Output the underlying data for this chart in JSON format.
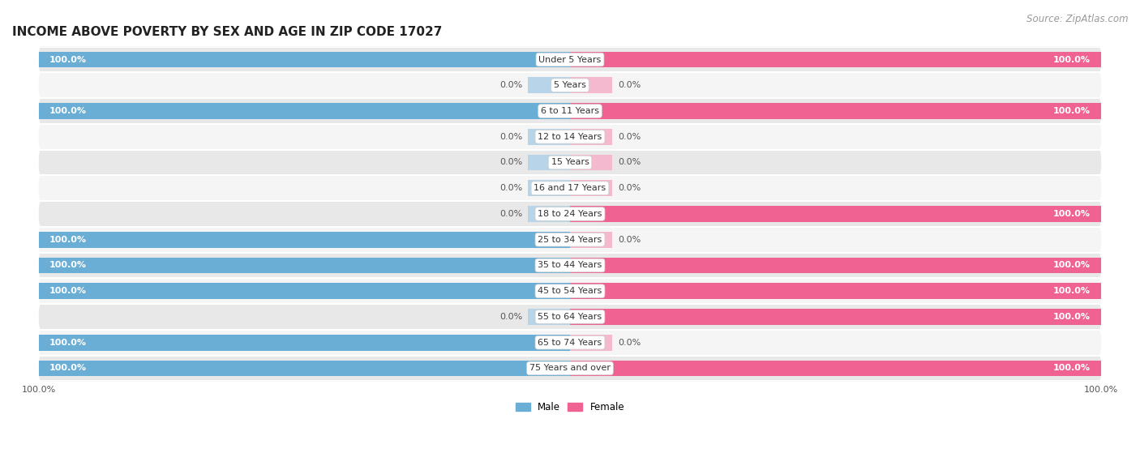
{
  "title": "INCOME ABOVE POVERTY BY SEX AND AGE IN ZIP CODE 17027",
  "source": "Source: ZipAtlas.com",
  "categories": [
    "Under 5 Years",
    "5 Years",
    "6 to 11 Years",
    "12 to 14 Years",
    "15 Years",
    "16 and 17 Years",
    "18 to 24 Years",
    "25 to 34 Years",
    "35 to 44 Years",
    "45 to 54 Years",
    "55 to 64 Years",
    "65 to 74 Years",
    "75 Years and over"
  ],
  "male": [
    100.0,
    0.0,
    100.0,
    0.0,
    0.0,
    0.0,
    0.0,
    100.0,
    100.0,
    100.0,
    0.0,
    100.0,
    100.0
  ],
  "female": [
    100.0,
    0.0,
    100.0,
    0.0,
    0.0,
    0.0,
    100.0,
    0.0,
    100.0,
    100.0,
    100.0,
    0.0,
    100.0
  ],
  "male_color": "#6aaed6",
  "male_stub_color": "#b8d4e8",
  "female_color": "#f06292",
  "female_stub_color": "#f4b8cf",
  "male_label": "Male",
  "female_label": "Female",
  "bg_color_odd": "#e8e8e8",
  "bg_color_even": "#f5f5f5",
  "bar_height": 0.62,
  "stub_value": 8,
  "title_fontsize": 11,
  "source_fontsize": 8.5,
  "label_fontsize": 8,
  "category_fontsize": 8,
  "legend_fontsize": 8.5
}
